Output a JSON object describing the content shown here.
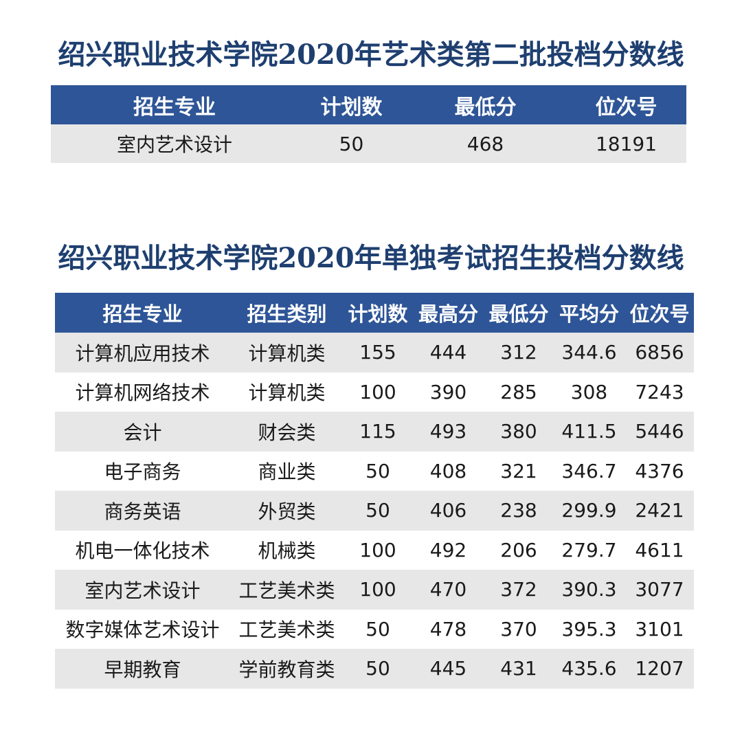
{
  "table1": {
    "title": "绍兴职业技术学院2020年艺术类第二批投档分数线",
    "headers": [
      "招生专业",
      "计划数",
      "最低分",
      "位次号"
    ],
    "rows": [
      [
        "室内艺术设计",
        "50",
        "468",
        "18191"
      ]
    ]
  },
  "table2": {
    "title": "绍兴职业技术学院2020年单独考试招生投档分数线",
    "headers": [
      "招生专业",
      "招生类别",
      "计划数",
      "最高分",
      "最低分",
      "平均分",
      "位次号"
    ],
    "rows": [
      [
        "计算机应用技术",
        "计算机类",
        "155",
        "444",
        "312",
        "344.6",
        "6856"
      ],
      [
        "计算机网络技术",
        "计算机类",
        "100",
        "390",
        "285",
        "308",
        "7243"
      ],
      [
        "会计",
        "财会类",
        "115",
        "493",
        "380",
        "411.5",
        "5446"
      ],
      [
        "电子商务",
        "商业类",
        "50",
        "408",
        "321",
        "346.7",
        "4376"
      ],
      [
        "商务英语",
        "外贸类",
        "50",
        "406",
        "238",
        "299.9",
        "2421"
      ],
      [
        "机电一体化技术",
        "机械类",
        "100",
        "492",
        "206",
        "279.7",
        "4611"
      ],
      [
        "室内艺术设计",
        "工艺美术类",
        "100",
        "470",
        "372",
        "390.3",
        "3077"
      ],
      [
        "数字媒体艺术设计",
        "工艺美术类",
        "50",
        "478",
        "370",
        "395.3",
        "3101"
      ],
      [
        "早期教育",
        "学前教育类",
        "50",
        "445",
        "431",
        "435.6",
        "1207"
      ]
    ]
  }
}
